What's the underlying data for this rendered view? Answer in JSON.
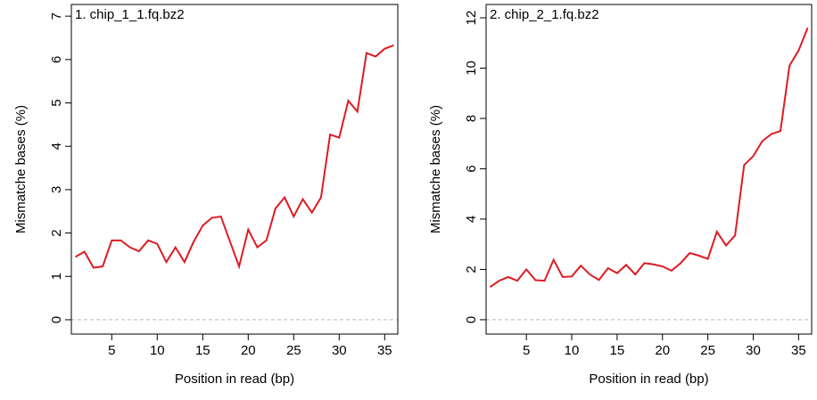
{
  "chart_data": [
    {
      "type": "line",
      "title": "1. chip_1_1.fq.bz2",
      "x_label": "Position in read (bp)",
      "y_label": "Mismatche bases (%)",
      "x": [
        1,
        2,
        3,
        4,
        5,
        6,
        7,
        8,
        9,
        10,
        11,
        12,
        13,
        14,
        15,
        16,
        17,
        18,
        19,
        20,
        21,
        22,
        23,
        24,
        25,
        26,
        27,
        28,
        29,
        30,
        31,
        32,
        33,
        34,
        35,
        36
      ],
      "values": [
        1.45,
        1.57,
        1.2,
        1.23,
        1.83,
        1.83,
        1.67,
        1.58,
        1.83,
        1.75,
        1.33,
        1.67,
        1.33,
        1.8,
        2.17,
        2.35,
        2.38,
        1.8,
        1.23,
        2.08,
        1.67,
        1.83,
        2.57,
        2.82,
        2.38,
        2.78,
        2.47,
        2.82,
        4.27,
        4.2,
        5.05,
        4.8,
        6.15,
        6.07,
        6.25,
        6.33
      ],
      "color": "#dd1c24",
      "hline": 0,
      "xlim": [
        0.56,
        36.44
      ],
      "xticks": [
        5,
        10,
        15,
        20,
        25,
        30,
        35
      ],
      "ylim": [
        -0.33,
        7.27
      ],
      "yticks": [
        0,
        1,
        2,
        3,
        4,
        5,
        6,
        7
      ]
    },
    {
      "type": "line",
      "title": "2. chip_2_1.fq.bz2",
      "x_label": "Position in read (bp)",
      "y_label": "Mismatche bases (%)",
      "x": [
        1,
        2,
        3,
        4,
        5,
        6,
        7,
        8,
        9,
        10,
        11,
        12,
        13,
        14,
        15,
        16,
        17,
        18,
        19,
        20,
        21,
        22,
        23,
        24,
        25,
        26,
        27,
        28,
        29,
        30,
        31,
        32,
        33,
        34,
        35,
        36
      ],
      "values": [
        1.3,
        1.55,
        1.7,
        1.55,
        2.0,
        1.57,
        1.55,
        2.38,
        1.7,
        1.72,
        2.15,
        1.8,
        1.58,
        2.05,
        1.85,
        2.18,
        1.8,
        2.25,
        2.2,
        2.12,
        1.95,
        2.25,
        2.65,
        2.55,
        2.42,
        3.5,
        2.95,
        3.35,
        6.15,
        6.5,
        7.1,
        7.38,
        7.5,
        10.1,
        10.7,
        11.6
      ],
      "color": "#dd1c24",
      "hline": 0,
      "xlim": [
        0.56,
        36.44
      ],
      "xticks": [
        5,
        10,
        15,
        20,
        25,
        30,
        35
      ],
      "ylim": [
        -0.57,
        12.53
      ],
      "yticks": [
        0,
        2,
        4,
        6,
        8,
        10,
        12
      ]
    }
  ]
}
